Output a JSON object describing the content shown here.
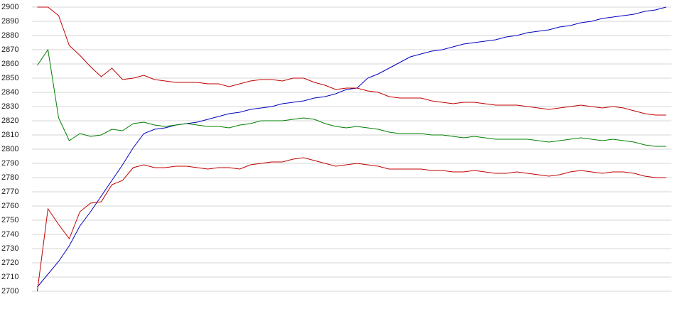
{
  "chart_data": {
    "type": "line",
    "categories": [
      null,
      null,
      null,
      null,
      null,
      null,
      null,
      null,
      null,
      null,
      null,
      null,
      null,
      null,
      null,
      null,
      null,
      null,
      null,
      null,
      null,
      null,
      null,
      null,
      null,
      null,
      null,
      null,
      null,
      null,
      null,
      null,
      null,
      null,
      null,
      null,
      null,
      null,
      null,
      null,
      null,
      null,
      null,
      null,
      null,
      null,
      null,
      null,
      null,
      null,
      null,
      null,
      null,
      null,
      null,
      null,
      null,
      null,
      null,
      null
    ],
    "series": [
      {
        "color": "#0000c0",
        "values": [
          2703,
          2712,
          2721,
          2732,
          2746,
          2756,
          2767,
          2778,
          2789,
          2801,
          2811,
          2814,
          2815,
          2817,
          2818,
          2819,
          2821,
          2823,
          2825,
          2826,
          2828,
          2829,
          2830,
          2832,
          2833,
          2834,
          2836,
          2837,
          2839,
          2842,
          2843,
          2850,
          2853,
          2857,
          2861,
          2865,
          2867,
          2869,
          2870,
          2872,
          2874,
          2875,
          2876,
          2877,
          2879,
          2880,
          2882,
          2883,
          2884,
          2886,
          2887,
          2889,
          2890,
          2892,
          2893,
          2894,
          2895,
          2897,
          2898,
          2900
        ]
      },
      {
        "color": "#008000",
        "values": [
          2859,
          2870,
          2822,
          2806,
          2811,
          2809,
          2810,
          2814,
          2813,
          2818,
          2819,
          2817,
          2816,
          2817,
          2818,
          2817,
          2816,
          2816,
          2815,
          2817,
          2818,
          2820,
          2820,
          2820,
          2821,
          2822,
          2821,
          2818,
          2816,
          2815,
          2816,
          2815,
          2814,
          2812,
          2811,
          2811,
          2811,
          2810,
          2810,
          2809,
          2808,
          2809,
          2808,
          2807,
          2807,
          2807,
          2807,
          2806,
          2805,
          2806,
          2807,
          2808,
          2807,
          2806,
          2807,
          2806,
          2805,
          2803,
          2802,
          2802
        ]
      },
      {
        "color": "#c00000",
        "values": [
          2900,
          2900,
          2894,
          2873,
          2866,
          2858,
          2851,
          2857,
          2849,
          2850,
          2852,
          2849,
          2848,
          2847,
          2847,
          2847,
          2846,
          2846,
          2844,
          2846,
          2848,
          2849,
          2849,
          2848,
          2850,
          2850,
          2847,
          2845,
          2842,
          2843,
          2843,
          2841,
          2840,
          2837,
          2836,
          2836,
          2836,
          2834,
          2833,
          2832,
          2833,
          2833,
          2832,
          2831,
          2831,
          2831,
          2830,
          2829,
          2828,
          2829,
          2830,
          2831,
          2830,
          2829,
          2830,
          2829,
          2827,
          2825,
          2824,
          2824
        ]
      },
      {
        "color": "#c00000",
        "values": [
          2700,
          2758,
          2747,
          2737,
          2756,
          2762,
          2763,
          2775,
          2778,
          2787,
          2789,
          2787,
          2787,
          2788,
          2788,
          2787,
          2786,
          2787,
          2787,
          2786,
          2789,
          2790,
          2791,
          2791,
          2793,
          2794,
          2792,
          2790,
          2788,
          2789,
          2790,
          2789,
          2788,
          2786,
          2786,
          2786,
          2786,
          2785,
          2785,
          2784,
          2784,
          2785,
          2784,
          2783,
          2783,
          2784,
          2783,
          2782,
          2781,
          2782,
          2784,
          2785,
          2784,
          2783,
          2784,
          2784,
          2783,
          2781,
          2780,
          2780
        ]
      }
    ],
    "ylim": [
      2700,
      2900
    ],
    "yticks": [
      2700,
      2710,
      2720,
      2730,
      2740,
      2750,
      2760,
      2770,
      2780,
      2790,
      2800,
      2810,
      2820,
      2830,
      2840,
      2850,
      2860,
      2870,
      2880,
      2890,
      2900
    ],
    "grid": true
  }
}
